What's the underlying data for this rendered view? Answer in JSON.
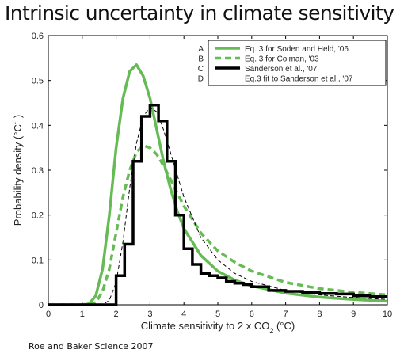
{
  "title": "Intrinsic uncertainty in climate sensitivity",
  "source": "Roe and Baker Science 2007",
  "chart_data": {
    "type": "line",
    "xlabel": "Climate sensitivity to 2 x CO",
    "xlabel_sub": "2",
    "xlabel_unit": " (°C)",
    "ylabel": "Probability density (°C",
    "ylabel_sup": "-1",
    "ylabel_end": ")",
    "xlim": [
      0,
      10
    ],
    "ylim": [
      0,
      0.6
    ],
    "xticks": [
      0,
      1,
      2,
      3,
      4,
      5,
      6,
      7,
      8,
      9,
      10
    ],
    "yticks": [
      0,
      0.1,
      0.2,
      0.3,
      0.4,
      0.5,
      0.6
    ],
    "legend_position": "top-right",
    "colors": {
      "green": "#66bb55",
      "black": "#000000"
    },
    "series": [
      {
        "key": "A",
        "name": "Eq. 3 for Soden and Held, '06",
        "color": "#66bb55",
        "style": "solid",
        "x": [
          0,
          1.0,
          1.2,
          1.4,
          1.6,
          1.8,
          2.0,
          2.2,
          2.4,
          2.6,
          2.8,
          3.0,
          3.2,
          3.4,
          3.6,
          3.8,
          4.0,
          4.5,
          5.0,
          5.5,
          6.0,
          7.0,
          8.0,
          9.0,
          10.0
        ],
        "y": [
          0,
          0,
          0.002,
          0.02,
          0.08,
          0.2,
          0.35,
          0.46,
          0.52,
          0.535,
          0.51,
          0.46,
          0.39,
          0.32,
          0.26,
          0.21,
          0.17,
          0.11,
          0.075,
          0.055,
          0.042,
          0.026,
          0.017,
          0.012,
          0.008
        ]
      },
      {
        "key": "B",
        "name": "Eq. 3 for Colman, '03",
        "color": "#66bb55",
        "style": "dashed",
        "x": [
          0,
          1.2,
          1.4,
          1.6,
          1.8,
          2.0,
          2.2,
          2.4,
          2.6,
          2.8,
          3.0,
          3.2,
          3.4,
          3.6,
          3.8,
          4.0,
          4.5,
          5.0,
          5.5,
          6.0,
          7.0,
          8.0,
          9.0,
          10.0
        ],
        "y": [
          0,
          0,
          0.005,
          0.03,
          0.08,
          0.16,
          0.24,
          0.3,
          0.34,
          0.355,
          0.35,
          0.335,
          0.31,
          0.28,
          0.25,
          0.22,
          0.16,
          0.12,
          0.095,
          0.075,
          0.05,
          0.036,
          0.028,
          0.022
        ]
      },
      {
        "key": "C",
        "name": "Sanderson et al., '07",
        "color": "#000000",
        "style": "step",
        "x": [
          0,
          2.0,
          2.0,
          2.25,
          2.25,
          2.5,
          2.5,
          2.75,
          2.75,
          3.0,
          3.0,
          3.25,
          3.25,
          3.5,
          3.5,
          3.75,
          3.75,
          4.0,
          4.0,
          4.25,
          4.25,
          4.5,
          4.5,
          4.75,
          4.75,
          5.0,
          5.0,
          5.25,
          5.25,
          5.5,
          5.5,
          5.75,
          5.75,
          6.0,
          6.0,
          6.5,
          6.5,
          7.0,
          7.0,
          7.5,
          7.5,
          8.0,
          8.0,
          8.5,
          8.5,
          9.0,
          9.0,
          9.5,
          9.5,
          10.0
        ],
        "y": [
          0,
          0,
          0.065,
          0.065,
          0.135,
          0.135,
          0.32,
          0.32,
          0.42,
          0.42,
          0.445,
          0.445,
          0.41,
          0.41,
          0.32,
          0.32,
          0.2,
          0.2,
          0.125,
          0.125,
          0.09,
          0.09,
          0.07,
          0.07,
          0.065,
          0.065,
          0.06,
          0.06,
          0.052,
          0.052,
          0.048,
          0.048,
          0.045,
          0.045,
          0.04,
          0.04,
          0.032,
          0.032,
          0.03,
          0.03,
          0.027,
          0.027,
          0.025,
          0.025,
          0.024,
          0.024,
          0.02,
          0.02,
          0.018,
          0.018
        ]
      },
      {
        "key": "D",
        "name": "Eq.3 fit to Sanderson et al., '07",
        "color": "#000000",
        "style": "thin-dashed",
        "x": [
          0,
          1.6,
          1.8,
          2.0,
          2.2,
          2.4,
          2.6,
          2.8,
          3.0,
          3.2,
          3.4,
          3.6,
          3.8,
          4.0,
          4.5,
          5.0,
          5.5,
          6.0,
          7.0,
          8.0,
          9.0,
          10.0
        ],
        "y": [
          0,
          0,
          0.01,
          0.05,
          0.14,
          0.26,
          0.36,
          0.42,
          0.44,
          0.43,
          0.39,
          0.34,
          0.29,
          0.24,
          0.15,
          0.1,
          0.07,
          0.052,
          0.032,
          0.022,
          0.016,
          0.012
        ]
      }
    ]
  }
}
